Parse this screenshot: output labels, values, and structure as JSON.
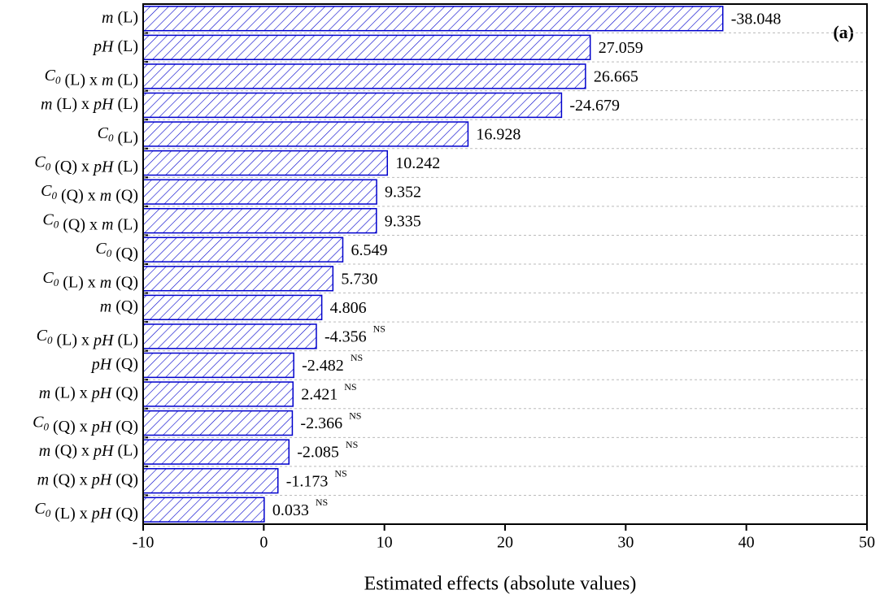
{
  "chart_data": {
    "type": "bar",
    "orientation": "horizontal",
    "categories": [
      "m (L)",
      "pH (L)",
      "C0 (L) x m (L)",
      "m (L) x pH (L)",
      "C0 (L)",
      "C0 (Q) x pH (L)",
      "C0 (Q) x m (Q)",
      "C0 (Q) x m (L)",
      "C0 (Q)",
      "C0 (L) x m (Q)",
      "m (Q)",
      "C0 (L) x pH (L)",
      "pH (Q)",
      "m (L) x pH (Q)",
      "C0 (Q) x pH (Q)",
      "m (Q) x pH (L)",
      "m (Q) x pH (Q)",
      "C0 (L) x pH (Q)"
    ],
    "values": [
      38.048,
      27.059,
      26.665,
      24.679,
      16.928,
      10.242,
      9.352,
      9.335,
      6.549,
      5.73,
      4.806,
      4.356,
      2.482,
      2.421,
      2.366,
      2.085,
      1.173,
      0.033
    ],
    "value_labels": [
      "-38.048",
      "27.059",
      "26.665",
      "-24.679",
      "16.928",
      "10.242",
      "9.352",
      "9.335",
      "6.549",
      "5.730",
      "4.806",
      "-4.356",
      "-2.482",
      "2.421",
      "-2.366",
      "-2.085",
      "-1.173",
      "0.033"
    ],
    "annotations": [
      null,
      null,
      null,
      null,
      null,
      null,
      null,
      null,
      null,
      null,
      null,
      "NS",
      "NS",
      "NS",
      "NS",
      "NS",
      "NS",
      "NS"
    ],
    "color": "#0000cc",
    "xlabel": "Estimated effects (absolute values)",
    "panel_label": "(a)",
    "xlim": [
      -10,
      50
    ],
    "xticks": [
      -10,
      0,
      10,
      20,
      30,
      40,
      50
    ],
    "grid": true
  }
}
